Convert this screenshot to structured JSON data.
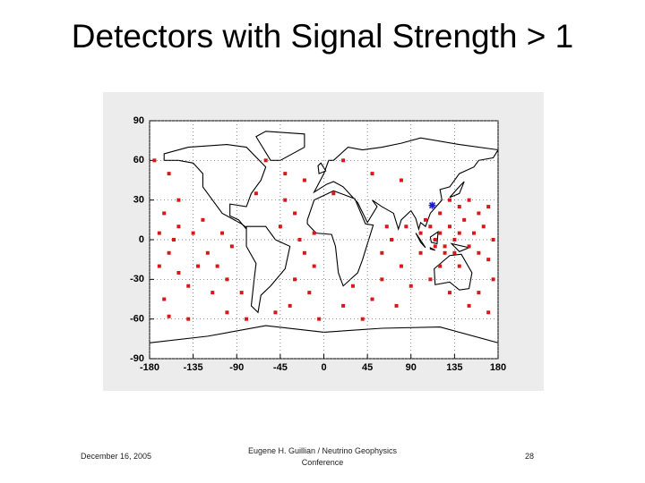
{
  "title": "Detectors with Signal Strength > 1",
  "footer": {
    "date": "December 16, 2005",
    "author": "Eugene H. Guillian / Neutrino Geophysics Conference",
    "page": "28"
  },
  "chart_data": {
    "type": "scatter",
    "xlim": [
      -180,
      180
    ],
    "ylim": [
      -90,
      90
    ],
    "xticks": [
      -180,
      -135,
      -90,
      -45,
      0,
      45,
      90,
      135,
      180
    ],
    "yticks": [
      -90,
      -60,
      -30,
      0,
      30,
      60,
      90
    ],
    "grid": true,
    "series": [
      {
        "color": "#d81818",
        "marker": "square",
        "x": [
          -160,
          -150,
          -165,
          -170,
          -155,
          -160,
          -170,
          -150,
          -140,
          -165,
          -160,
          -140,
          -150,
          -135,
          -125,
          -120,
          -110,
          -100,
          -115,
          -130,
          -105,
          -95,
          -85,
          -80,
          -100,
          -40,
          -30,
          -45,
          -25,
          -20,
          -10,
          -30,
          -15,
          -35,
          -5,
          -50,
          -20,
          -40,
          -10,
          60,
          70,
          80,
          60,
          90,
          100,
          50,
          75,
          40,
          20,
          65,
          85,
          30,
          100,
          105,
          110,
          115,
          120,
          125,
          130,
          135,
          140,
          145,
          150,
          155,
          160,
          165,
          170,
          175,
          120,
          130,
          140,
          150,
          160,
          170,
          175,
          160,
          150,
          170,
          110,
          120,
          140,
          130,
          115,
          125,
          135,
          -175,
          -60,
          10,
          20,
          50,
          -70,
          80
        ],
        "y": [
          50,
          30,
          20,
          5,
          0,
          -10,
          -20,
          -25,
          -35,
          -45,
          -58,
          -60,
          10,
          5,
          15,
          -10,
          -20,
          -30,
          -40,
          -20,
          5,
          -5,
          -40,
          -60,
          -55,
          30,
          20,
          10,
          0,
          -10,
          -20,
          -30,
          -40,
          -50,
          -60,
          -55,
          45,
          50,
          5,
          -10,
          0,
          -20,
          -30,
          -35,
          -10,
          -45,
          -50,
          -60,
          -50,
          10,
          10,
          -35,
          5,
          15,
          10,
          0,
          5,
          -5,
          10,
          0,
          5,
          15,
          -5,
          5,
          -10,
          10,
          -15,
          0,
          20,
          30,
          25,
          30,
          20,
          25,
          -30,
          -40,
          -50,
          -55,
          -30,
          -20,
          -20,
          -40,
          -5,
          -10,
          -10,
          60,
          60,
          35,
          60,
          50,
          35,
          45
        ]
      },
      {
        "color": "#1a1ad0",
        "marker": "star",
        "x": [
          112
        ],
        "y": [
          26
        ]
      }
    ]
  }
}
